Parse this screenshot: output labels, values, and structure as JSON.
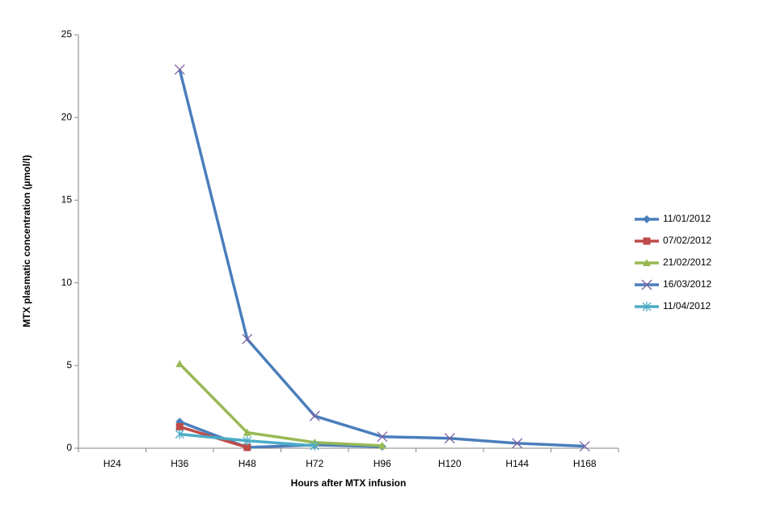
{
  "chart_data": {
    "type": "line",
    "x_label": "Hours after MTX infusion",
    "y_label": "MTX plasmatic concentration (µmol/l)",
    "categories": [
      "H24",
      "H36",
      "H48",
      "H72",
      "H96",
      "H120",
      "H144",
      "H168"
    ],
    "ylim": [
      0,
      25
    ],
    "yticks": [
      0,
      5,
      10,
      15,
      20,
      25
    ],
    "grid": false,
    "legend": "right",
    "series": [
      {
        "name": "11/01/2012",
        "color": "#4a7ebb",
        "marker": "diamond",
        "values": [
          null,
          1.6,
          0.05,
          0.2,
          0.1,
          null,
          null,
          null
        ]
      },
      {
        "name": "07/02/2012",
        "color": "#be4b48",
        "marker": "square",
        "values": [
          null,
          1.3,
          0.05,
          null,
          null,
          null,
          null,
          null
        ]
      },
      {
        "name": "21/02/2012",
        "color": "#98b954",
        "marker": "triangle",
        "values": [
          null,
          5.1,
          0.95,
          0.35,
          0.15,
          null,
          null,
          null
        ]
      },
      {
        "name": "16/03/2012",
        "color": "#4a7ebb",
        "marker": "x",
        "marker_color": "#7d60a0",
        "values": [
          null,
          22.9,
          6.6,
          1.95,
          0.7,
          0.6,
          0.3,
          0.12
        ]
      },
      {
        "name": "11/04/2012",
        "color": "#4bacc6",
        "marker": "star",
        "values": [
          null,
          0.85,
          0.45,
          0.15,
          null,
          null,
          null,
          null
        ]
      }
    ]
  }
}
